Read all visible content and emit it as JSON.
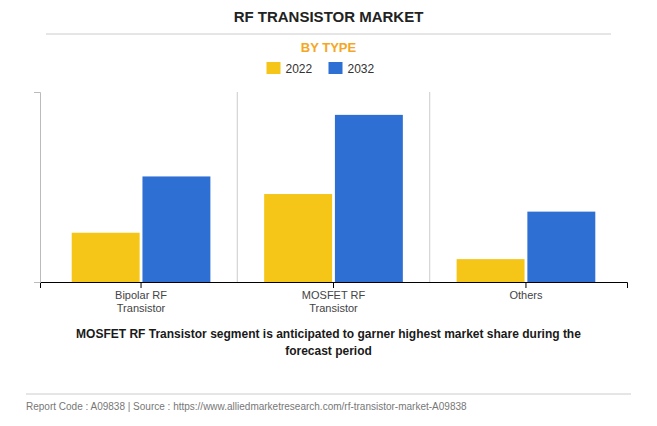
{
  "chart_data": {
    "type": "bar",
    "title": "RF TRANSISTOR MARKET",
    "subtitle": "BY TYPE",
    "categories": [
      "Bipolar RF\nTransistor",
      "MOSFET RF\nTransistor",
      "Others"
    ],
    "series": [
      {
        "name": "2022",
        "color": "#F5C518",
        "values": [
          0.28,
          0.5,
          0.13
        ]
      },
      {
        "name": "2032",
        "color": "#2E6FD4",
        "values": [
          0.6,
          0.95,
          0.4
        ]
      }
    ],
    "ylim": [
      0,
      1.08
    ],
    "tick_labels": "x",
    "grid": false,
    "legend": "top",
    "annotations": [
      "MOSFET RF Transistor segment is anticipated to garner highest market share during the\nforecast period",
      "Report Code : A09838  |  Source : https://www.alliedmarketresearch.com/rf-transistor-market-A09838"
    ]
  }
}
